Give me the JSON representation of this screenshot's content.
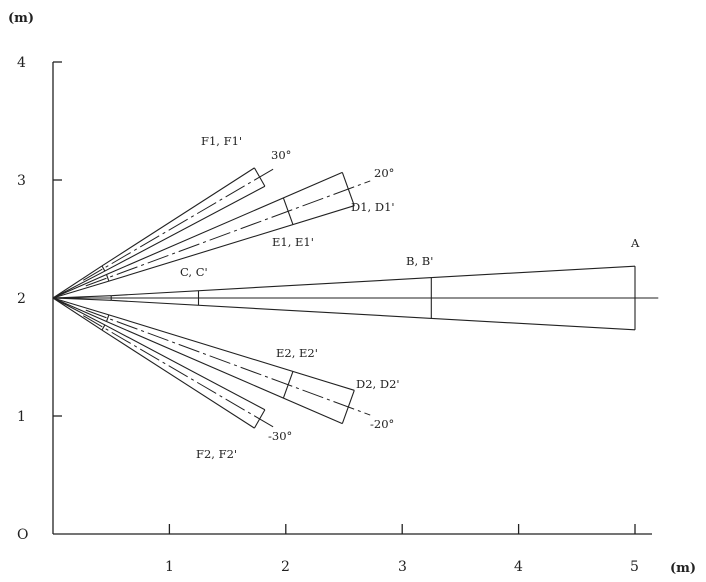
{
  "axes": {
    "y_unit": "(m)",
    "x_unit": "(m)",
    "origin_label": "O",
    "x_ticks": [
      "1",
      "2",
      "3",
      "4",
      "5"
    ],
    "y_ticks": [
      "1",
      "2",
      "3",
      "4"
    ]
  },
  "diagram": {
    "source_point": [
      0,
      2
    ],
    "center_axis_end": 5.2,
    "beams": [
      {
        "id": "A",
        "angle_deg": 0,
        "end_label": "A",
        "mid_label": "B, B'",
        "near_label": "C, C'",
        "start": 0.5,
        "end": 5.0,
        "half_width_start": 0.02,
        "half_width_end": 0.27,
        "marks_at": [
          1.25,
          3.25
        ]
      },
      {
        "id": "D1",
        "angle_deg": 20,
        "angle_label": "20°",
        "end_label": "D1, D1'",
        "mid_label": "E1, E1'",
        "start": 0.5,
        "end": 2.7,
        "center_extend": 2.9,
        "half_width_start": 0.03,
        "half_width_end": 0.15,
        "marks_at": [
          2.15
        ]
      },
      {
        "id": "F1",
        "angle_deg": 30,
        "angle_label": "30°",
        "end_label": "F1, F1'",
        "start": 0.5,
        "end": 2.05,
        "center_extend": 2.2,
        "half_width_start": 0.025,
        "half_width_end": 0.09,
        "marks_at": []
      },
      {
        "id": "D2",
        "angle_deg": -20,
        "angle_label": "-20°",
        "end_label": "D2, D2'",
        "mid_label": "E2, E2'",
        "start": 0.5,
        "end": 2.7,
        "center_extend": 2.9,
        "half_width_start": 0.03,
        "half_width_end": 0.15,
        "marks_at": [
          2.15
        ]
      },
      {
        "id": "F2",
        "angle_deg": -30,
        "angle_label": "-30°",
        "end_label": "F2, F2'",
        "start": 0.5,
        "end": 2.05,
        "center_extend": 2.2,
        "half_width_start": 0.025,
        "half_width_end": 0.09,
        "marks_at": []
      }
    ]
  }
}
